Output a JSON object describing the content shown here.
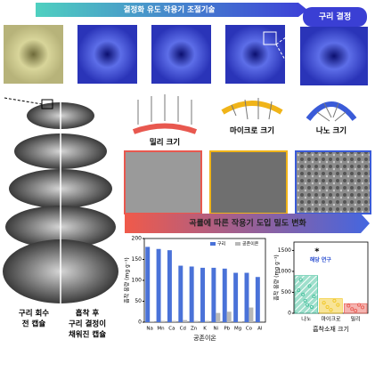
{
  "header": {
    "title": "결정화 유도 작용기 조절기술",
    "badge": "구리 결정"
  },
  "sizes": [
    "밀리 크기",
    "마이크로 크기",
    "나노 크기"
  ],
  "curvature_title": "곡률에 따른 작용기 도입 밀도 변화",
  "capsule_labels": {
    "before": [
      "구리 회수",
      "전 캡슐"
    ],
    "after": [
      "흡착 후",
      "구리 결정이",
      "채워진 캡슐"
    ]
  },
  "chart_data": [
    {
      "type": "bar",
      "xlabel": "공존이온",
      "ylabel": "흡착 용량 (mg g⁻¹)",
      "categories": [
        "Na",
        "Mn",
        "Ca",
        "Cd",
        "Zn",
        "K",
        "Ni",
        "Pb",
        "Mg",
        "Co",
        "Al"
      ],
      "series": [
        {
          "name": "구리",
          "color": "#4a72d8",
          "values": [
            180,
            175,
            172,
            135,
            133,
            130,
            130,
            128,
            118,
            118,
            108
          ]
        },
        {
          "name": "공존이온",
          "color": "#b8b8b8",
          "values": [
            2,
            3,
            3,
            5,
            3,
            3,
            22,
            25,
            2,
            35,
            0
          ]
        }
      ],
      "ylim": [
        0,
        200
      ],
      "yticks": [
        0,
        50,
        100,
        150,
        200
      ],
      "legend": "top-right"
    },
    {
      "type": "range",
      "xlabel": "흡착소재 크기",
      "ylabel": "흡착 용량 (mg g⁻¹)",
      "categories": [
        "나노",
        "마이크로",
        "밀리"
      ],
      "values": [
        900,
        350,
        230
      ],
      "colors": [
        "#3fbf9a",
        "#f0c419",
        "#e8584f"
      ],
      "points": [
        [
          550,
          800,
          450,
          300,
          200,
          650,
          150,
          400
        ],
        [
          250,
          150,
          80,
          300,
          200
        ],
        [
          180,
          100,
          60,
          200,
          140
        ]
      ],
      "highlight": {
        "label": "해당 연구",
        "value": 1480
      },
      "ylim": [
        0,
        1700
      ],
      "yticks": [
        0,
        500,
        1000,
        1500
      ]
    }
  ]
}
